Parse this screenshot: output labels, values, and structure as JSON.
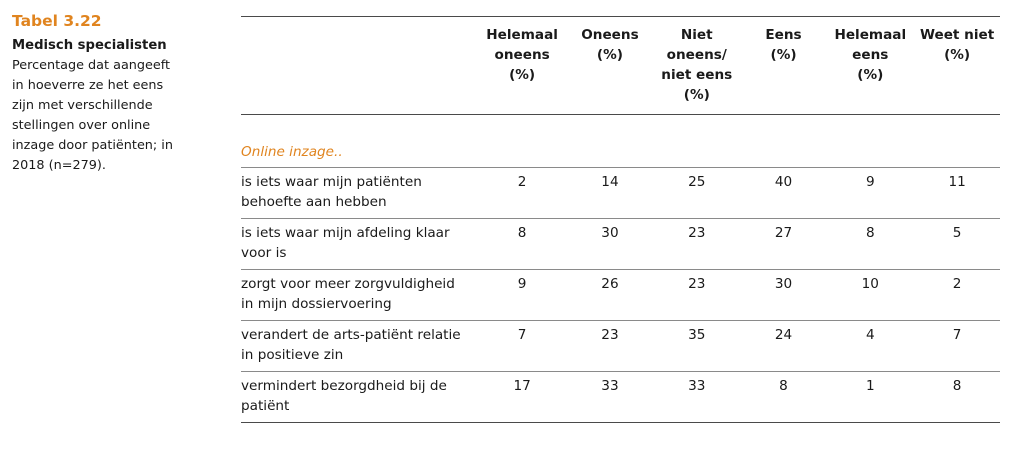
{
  "caption": {
    "number": "Tabel 3.22",
    "subject": "Medisch specialisten",
    "description": "Percentage dat aangeeft\nin hoeverre ze het eens\nzijn met verschillende\nstellingen over online\ninzage door patiënten; in\n2018 (n=279)."
  },
  "table": {
    "headers": [
      "Helemaal\noneens\n(%)",
      "Oneens\n(%)",
      "Niet\noneens/\nniet eens\n(%)",
      "Eens\n(%)",
      "Helemaal\neens\n(%)",
      "Weet niet\n(%)"
    ],
    "group_title": "Online inzage..",
    "rows": [
      {
        "label": "is iets waar mijn patiënten behoefte aan hebben",
        "values": [
          "2",
          "14",
          "25",
          "40",
          "9",
          "11"
        ]
      },
      {
        "label": "is iets waar mijn afdeling klaar voor is",
        "values": [
          "8",
          "30",
          "23",
          "27",
          "8",
          "5"
        ]
      },
      {
        "label": "zorgt voor meer zorgvuldigheid in mijn dossiervoering",
        "values": [
          "9",
          "26",
          "23",
          "30",
          "10",
          "2"
        ]
      },
      {
        "label": "verandert de arts-patiënt relatie in positieve zin",
        "values": [
          "7",
          "23",
          "35",
          "24",
          "4",
          "7"
        ]
      },
      {
        "label": "vermindert bezorgdheid bij de patiënt",
        "values": [
          "17",
          "33",
          "33",
          "8",
          "1",
          "8"
        ]
      }
    ]
  },
  "colors": {
    "accent": "#e0841f",
    "text": "#1a1a1a",
    "rule": "#4a4a4a"
  }
}
